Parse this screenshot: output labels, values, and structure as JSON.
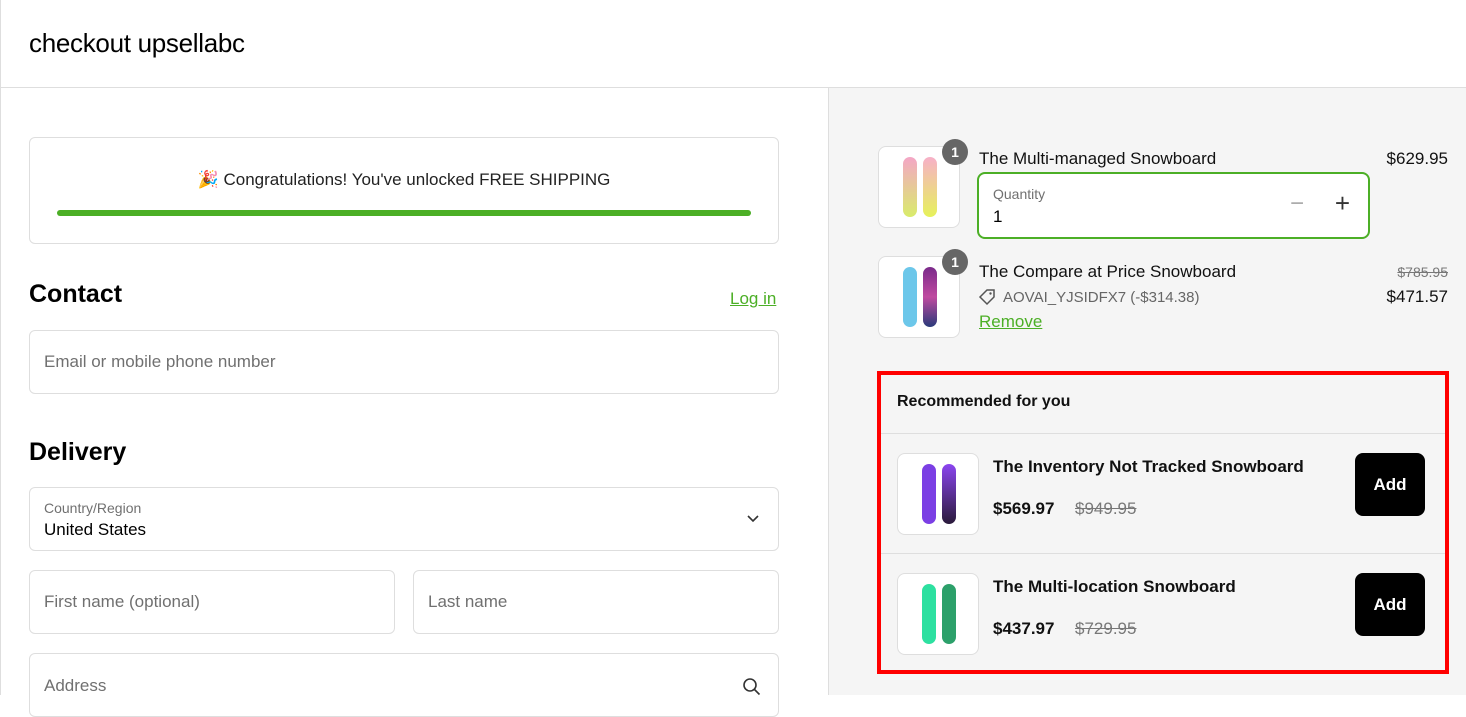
{
  "header": {
    "title": "checkout upsellabc"
  },
  "shipping": {
    "icon": "party-popper-icon",
    "message": "🎉 Congratulations! You've unlocked FREE SHIPPING",
    "progress_percent": 100,
    "color": "#4caf26"
  },
  "contact": {
    "title": "Contact",
    "login": "Log in",
    "email_placeholder": "Email or mobile phone number"
  },
  "delivery": {
    "title": "Delivery",
    "country_label": "Country/Region",
    "country_value": "United States",
    "first_name_placeholder": "First name (optional)",
    "last_name_placeholder": "Last name",
    "address_placeholder": "Address"
  },
  "cart": {
    "items": [
      {
        "name": "The Multi-managed Snowboard",
        "qty": "1",
        "price": "$629.95",
        "qty_label": "Quantity",
        "qty_value": "1"
      },
      {
        "name": "The Compare at Price Snowboard",
        "qty": "1",
        "compare_price": "$785.95",
        "price": "$471.57",
        "discount": "AOVAI_YJSIDFX7 (-$314.38)",
        "remove": "Remove"
      }
    ]
  },
  "recommended": {
    "title": "Recommended for you",
    "items": [
      {
        "name": "The Inventory Not Tracked Snowboard",
        "price": "$569.97",
        "compare_price": "$949.95",
        "button": "Add"
      },
      {
        "name": "The Multi-location Snowboard",
        "price": "$437.97",
        "compare_price": "$729.95",
        "button": "Add"
      }
    ]
  },
  "colors": {
    "accent": "#4caf26",
    "highlight": "#ff0000"
  }
}
